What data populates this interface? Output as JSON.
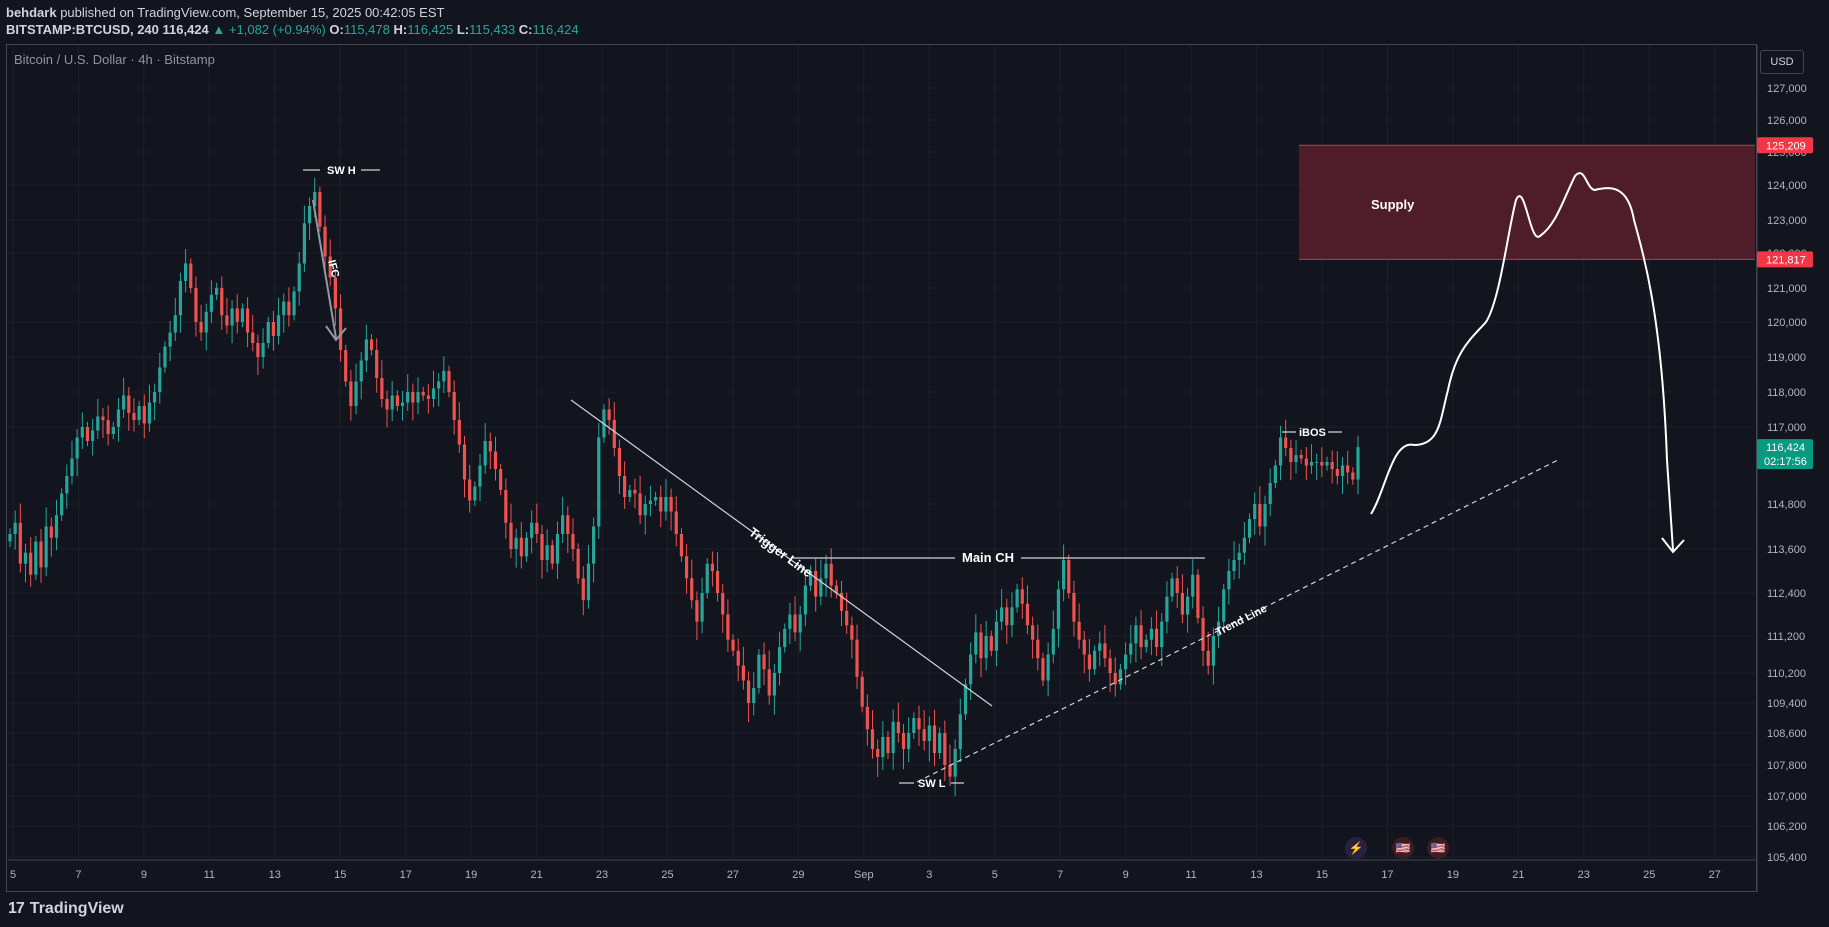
{
  "header": {
    "author": "behdark",
    "published_text": "published on TradingView.com, September 15, 2025 00:42:05 EST",
    "symbol": "BITSTAMP:BTCUSD, 240",
    "last": "116,424",
    "change": "▲ +1,082 (+0.94%)",
    "o_label": "O:",
    "o_val": "115,478",
    "h_label": "H:",
    "h_val": "116,425",
    "l_label": "L:",
    "l_val": "115,433",
    "c_label": "C:",
    "c_val": "116,424"
  },
  "chart_title": "Bitcoin / U.S. Dollar · 4h · Bitstamp",
  "currency": "USD",
  "footer": {
    "brand": "TradingView"
  },
  "colors": {
    "up": "#26a69a",
    "down": "#ef5350",
    "supply": "#5a1f2b",
    "price_tag": "#089981"
  },
  "chart_data": {
    "type": "candlestick",
    "x_ticks": [
      "5",
      "7",
      "9",
      "11",
      "13",
      "15",
      "17",
      "19",
      "21",
      "23",
      "25",
      "27",
      "29",
      "Sep",
      "3",
      "5",
      "7",
      "9",
      "11",
      "13",
      "15",
      "17",
      "19",
      "21",
      "23",
      "25",
      "27"
    ],
    "y_ticks": [
      "127,000",
      "126,000",
      "125,000",
      "124,000",
      "123,000",
      "122,000",
      "121,000",
      "120,000",
      "119,000",
      "118,000",
      "117,000",
      "114,800",
      "113,600",
      "112,400",
      "111,200",
      "110,200",
      "109,400",
      "108,600",
      "107,800",
      "107,000",
      "106,200",
      "105,400"
    ],
    "ylim": [
      105400,
      127400
    ],
    "price_labels": [
      {
        "text": "125,209",
        "value": 125209,
        "color": "#f23645"
      },
      {
        "text": "121,817",
        "value": 121817,
        "color": "#f23645"
      },
      {
        "text": "116,424",
        "value": 116424,
        "color": "#089981",
        "sub": "02:17:56"
      }
    ],
    "annotations": {
      "sw_h": "SW H",
      "sw_l": "SW L",
      "ifc": "IFC",
      "ibos": "iBOS",
      "main_ch": "Main CH",
      "trigger_line": "Trigger Line",
      "trend_line": "Trend Line",
      "supply": "Supply"
    },
    "path_closes": [
      114000,
      114300,
      113200,
      113500,
      112900,
      113800,
      113100,
      114200,
      113900,
      114500,
      115100,
      115600,
      116100,
      116700,
      117000,
      116600,
      116900,
      117300,
      117200,
      116800,
      117000,
      117500,
      117900,
      117400,
      117200,
      117600,
      117100,
      117700,
      118000,
      118700,
      119300,
      119700,
      120200,
      121200,
      121700,
      121000,
      120000,
      119700,
      120300,
      120800,
      121000,
      120200,
      119900,
      120400,
      120000,
      120400,
      119700,
      119400,
      119000,
      119400,
      120000,
      119600,
      120200,
      120600,
      120200,
      120900,
      121700,
      122900,
      123400,
      123800,
      122800,
      121900,
      121300,
      120400,
      119200,
      118300,
      117600,
      118300,
      118900,
      119500,
      119200,
      118400,
      117800,
      117500,
      117900,
      117600,
      117700,
      118000,
      117700,
      118000,
      117900,
      117800,
      118100,
      118300,
      118600,
      118000,
      117200,
      116500,
      115500,
      114900,
      115300,
      115900,
      116600,
      116300,
      115800,
      115200,
      114300,
      113600,
      113900,
      113400,
      113900,
      114300,
      114000,
      113300,
      113700,
      113200,
      114000,
      114500,
      114000,
      113600,
      112800,
      112200,
      113200,
      114200,
      116700,
      117500,
      117200,
      116400,
      115600,
      115000,
      115200,
      115100,
      114500,
      114800,
      114900,
      115000,
      114600,
      115000,
      114600,
      114000,
      113400,
      112800,
      112200,
      111600,
      112400,
      113200,
      113000,
      112400,
      111800,
      111100,
      110800,
      110400,
      110000,
      109400,
      109800,
      110700,
      110300,
      109600,
      110200,
      110900,
      111400,
      111800,
      111300,
      111800,
      112600,
      113000,
      112300,
      112800,
      113200,
      112600,
      112400,
      111900,
      111500,
      111100,
      110100,
      109300,
      108700,
      108200,
      108000,
      108500,
      108100,
      108900,
      108600,
      108200,
      108600,
      109000,
      108700,
      108400,
      108800,
      108100,
      108600,
      107800,
      107500,
      108200,
      109100,
      109900,
      110700,
      111300,
      110600,
      111200,
      110800,
      111600,
      112000,
      111500,
      112000,
      112500,
      112100,
      111500,
      111100,
      110600,
      110000,
      110700,
      111400,
      112500,
      113300,
      112400,
      111600,
      111100,
      110700,
      110300,
      110800,
      111000,
      110600,
      110200,
      109900,
      110300,
      110700,
      111000,
      111500,
      110900,
      111100,
      111400,
      110900,
      111600,
      112300,
      112800,
      112400,
      111800,
      112300,
      112900,
      111700,
      110800,
      110400,
      111200,
      111600,
      112500,
      113000,
      113300,
      113500,
      113900,
      114400,
      114800,
      114200,
      114800,
      115400,
      115900,
      116700,
      116400,
      116000,
      116200,
      116100,
      115900,
      116000,
      116000,
      115900,
      116000,
      115800,
      115600,
      115900,
      115700,
      115500,
      116424
    ]
  }
}
